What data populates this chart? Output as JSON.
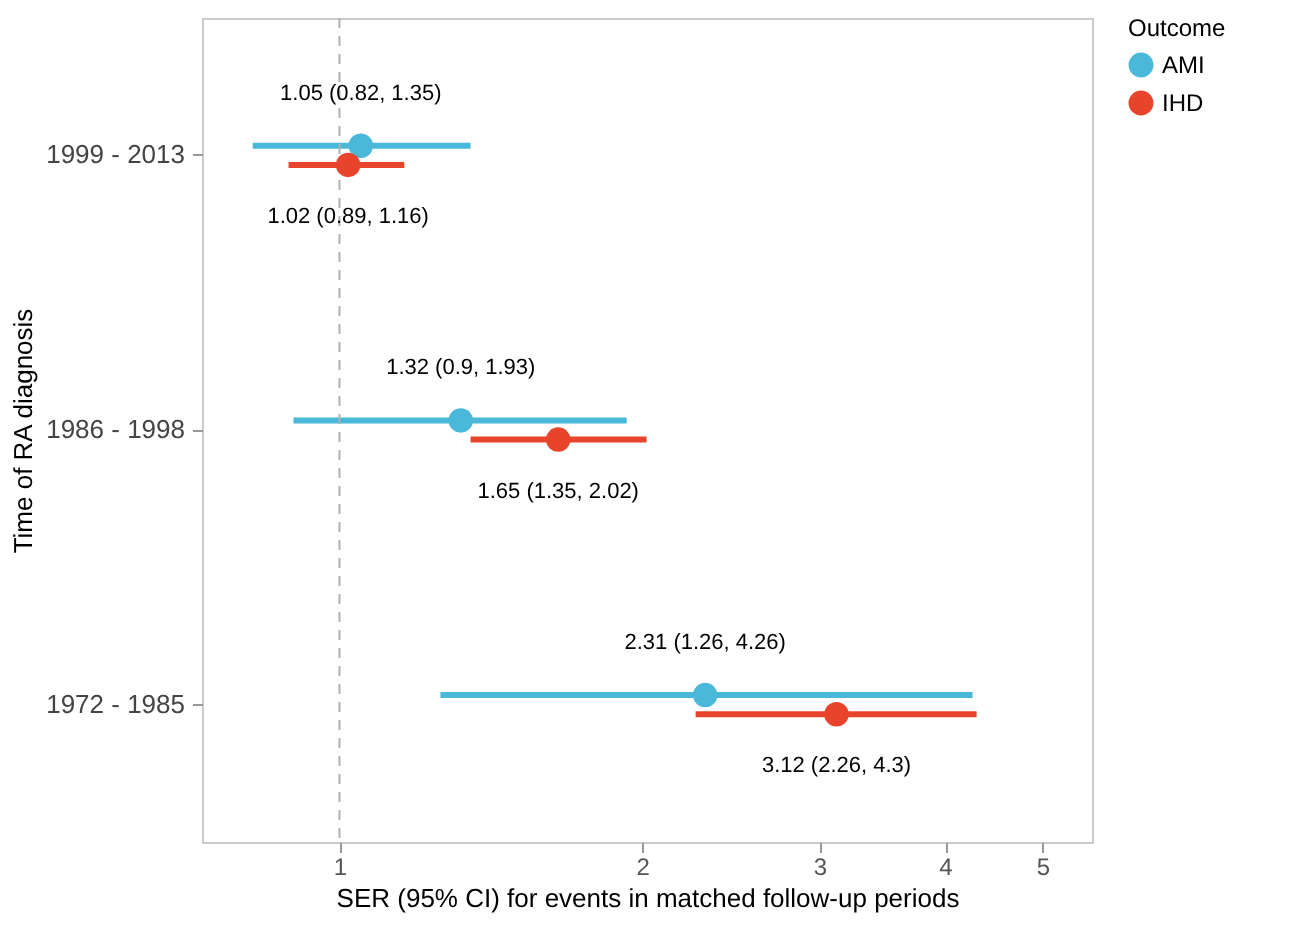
{
  "chart_data": {
    "type": "scatter",
    "xlabel": "SER (95% CI) for events in matched follow-up periods",
    "ylabel": "Time of RA diagnosis",
    "legend_title": "Outcome",
    "categories": [
      "1999 - 2013",
      "1986 - 1998",
      "1972 - 1985"
    ],
    "series": [
      {
        "name": "AMI",
        "color": "#4ab8d8",
        "values": [
          1.05,
          1.32,
          2.31
        ],
        "errors": [
          [
            0.82,
            1.35
          ],
          [
            0.9,
            1.93
          ],
          [
            1.26,
            4.26
          ]
        ],
        "value_labels": [
          "1.05 (0.82, 1.35)",
          "1.32 (0.9, 1.93)",
          "2.31 (1.26, 4.26)"
        ]
      },
      {
        "name": "IHD",
        "color": "#e8442c",
        "values": [
          1.02,
          1.65,
          3.12
        ],
        "errors": [
          [
            0.89,
            1.16
          ],
          [
            1.35,
            2.02
          ],
          [
            2.26,
            4.3
          ]
        ],
        "value_labels": [
          "1.02 (0.89, 1.16)",
          "1.65 (1.35, 2.02)",
          "3.12 (2.26, 4.3)"
        ]
      }
    ],
    "orientation": "horizontal",
    "log": "x",
    "xlim": [
      0.73,
      5.6
    ],
    "xticks": [
      1,
      2,
      3,
      4,
      5
    ],
    "marker": "circle",
    "legend": "right",
    "grid": false,
    "ref_lines": [
      {
        "axis": "x",
        "value": 1,
        "color": "#b0b0b0",
        "line_style": "dashed"
      }
    ]
  }
}
